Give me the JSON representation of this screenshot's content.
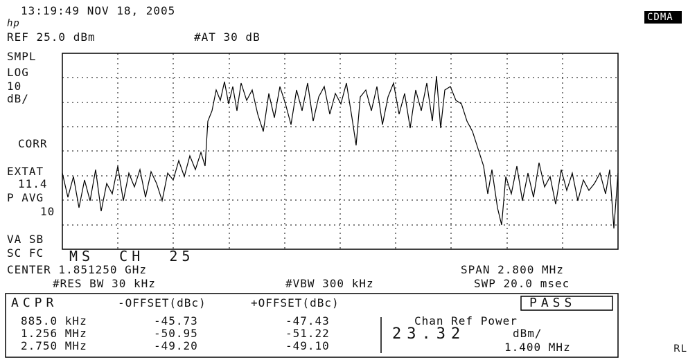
{
  "header": {
    "timestamp": "13:19:49 NOV 18, 2005",
    "logo": "hp",
    "mode": "CDMA",
    "ref": "REF 25.0 dBm",
    "atten": "#AT 30 dB"
  },
  "left_labels": [
    "SMPL",
    "LOG",
    "10",
    "dB/",
    "CORR",
    "EXTAT",
    "11.4",
    "P AVG",
    "10",
    "VA SB",
    "SC FC"
  ],
  "channel": "MS  CH  25",
  "footer": {
    "center": "CENTER 1.851250 GHz",
    "span": "SPAN 2.800 MHz",
    "rbw": "#RES BW 30 kHz",
    "vbw": "#VBW 300 kHz",
    "swp": "SWP 20.0 msec"
  },
  "acpr": {
    "title": "ACPR",
    "neg_header": "-OFFSET(dBc)",
    "pos_header": "+OFFSET(dBc)",
    "status": "PASS",
    "rows": [
      [
        "885.0 kHz",
        "-45.73",
        "-47.43"
      ],
      [
        "1.256 MHz",
        "-50.95",
        "-51.22"
      ],
      [
        "2.750 MHz",
        "-49.20",
        "-49.10"
      ]
    ],
    "chan_ref": "Chan Ref Power",
    "power": "23.32",
    "unit": "dBm/",
    "bw": "1.400 MHz"
  },
  "corner": "RL"
}
